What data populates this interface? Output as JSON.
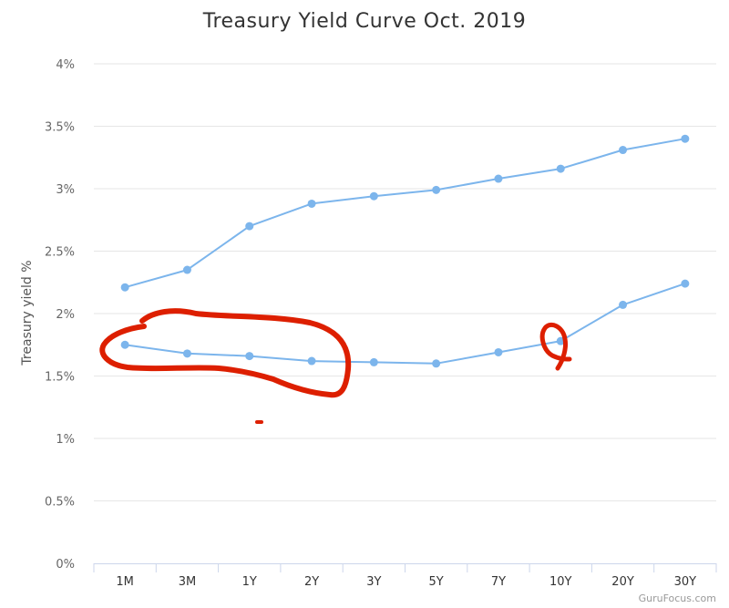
{
  "chart_data": {
    "type": "line",
    "title": "Treasury Yield Curve Oct. 2019",
    "xlabel": "",
    "ylabel": "Treasury yield %",
    "categories": [
      "1M",
      "3M",
      "1Y",
      "2Y",
      "3Y",
      "5Y",
      "7Y",
      "10Y",
      "20Y",
      "30Y"
    ],
    "ylim": [
      0,
      4
    ],
    "yticks": [
      0,
      0.5,
      1,
      1.5,
      2,
      2.5,
      3,
      3.5,
      4
    ],
    "ytick_labels": [
      "0%",
      "0.5%",
      "1%",
      "1.5%",
      "2%",
      "2.5%",
      "3%",
      "3.5%",
      "4%"
    ],
    "grid": true,
    "series": [
      {
        "values": [
          2.21,
          2.35,
          2.7,
          2.88,
          2.94,
          2.99,
          3.08,
          3.16,
          3.31,
          3.4
        ]
      },
      {
        "values": [
          1.75,
          1.68,
          1.66,
          1.62,
          1.61,
          1.6,
          1.69,
          1.78,
          2.07,
          2.24
        ]
      }
    ],
    "colors": {
      "series": "#7cb5ec",
      "annotation": "#dd1f00"
    }
  },
  "credit": "GuruFocus.com"
}
